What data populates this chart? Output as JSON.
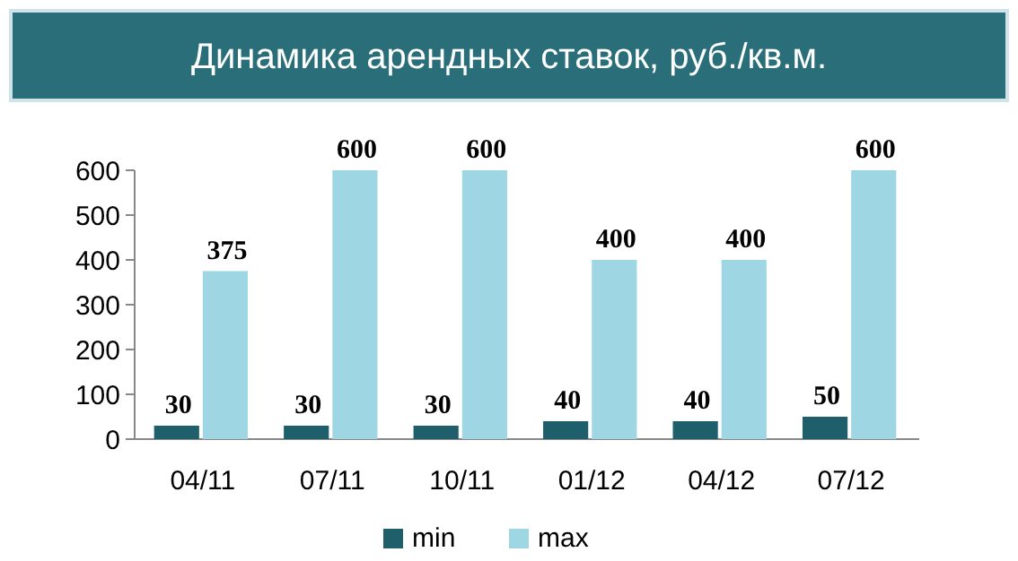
{
  "chart_data": {
    "type": "bar",
    "title": "Динамика арендных ставок, руб./кв.м.",
    "categories": [
      "04/11",
      "07/11",
      "10/11",
      "01/12",
      "04/12",
      "07/12"
    ],
    "series": [
      {
        "name": "min",
        "color": "#1f5f6b",
        "values": [
          30,
          30,
          30,
          40,
          40,
          50
        ]
      },
      {
        "name": "max",
        "color": "#9ed6e4",
        "values": [
          375,
          600,
          600,
          400,
          400,
          600
        ]
      }
    ],
    "ylim": [
      0,
      600
    ],
    "yticks": [
      0,
      100,
      200,
      300,
      400,
      500,
      600
    ],
    "grid": false,
    "legend": "bottom",
    "data_labels": true
  }
}
